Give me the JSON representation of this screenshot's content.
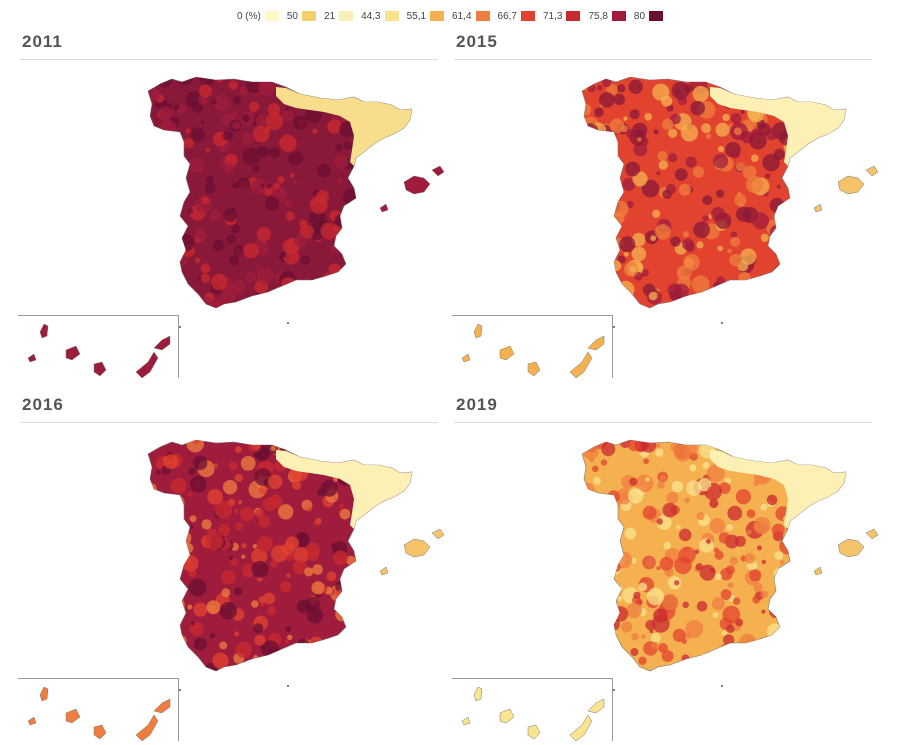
{
  "legend": {
    "items": [
      {
        "label": "0 (%)",
        "color": "#fef9c6"
      },
      {
        "label": "50",
        "color": "#f3cf6b"
      },
      {
        "label": "21",
        "color": "#fdf0b5"
      },
      {
        "label": "44,3",
        "color": "#f9e48f"
      },
      {
        "label": "55,1",
        "color": "#f5b14f"
      },
      {
        "label": "61,4",
        "color": "#ef7d3f"
      },
      {
        "label": "66,7",
        "color": "#e2432f"
      },
      {
        "label": "71,3",
        "color": "#c92a2f"
      },
      {
        "label": "75,8",
        "color": "#a01c3c"
      },
      {
        "label": "80",
        "color": "#6b0f33"
      }
    ]
  },
  "panels": [
    {
      "year": "2011",
      "mainland_base": "#8a1838",
      "north_east": "#f7dd8c",
      "canary_base": "#9c1d3b",
      "mottle": [
        "#6b0f33",
        "#a01c3c",
        "#c92a2f"
      ]
    },
    {
      "year": "2015",
      "mainland_base": "#e2432f",
      "north_east": "#fdf0b5",
      "canary_base": "#f5b14f",
      "mottle": [
        "#a01c3c",
        "#f5b14f",
        "#8a1838",
        "#ef7d3f"
      ]
    },
    {
      "year": "2016",
      "mainland_base": "#a01c3c",
      "north_east": "#fdf0b5",
      "canary_base": "#ef7d3f",
      "mottle": [
        "#6b0f33",
        "#e2432f",
        "#ef7d3f",
        "#c92a2f"
      ]
    },
    {
      "year": "2019",
      "mainland_base": "#f5b14f",
      "north_east": "#fdf0b5",
      "canary_base": "#f9e48f",
      "mottle": [
        "#e2432f",
        "#f9e48f",
        "#ef7d3f",
        "#c92a2f"
      ]
    }
  ]
}
